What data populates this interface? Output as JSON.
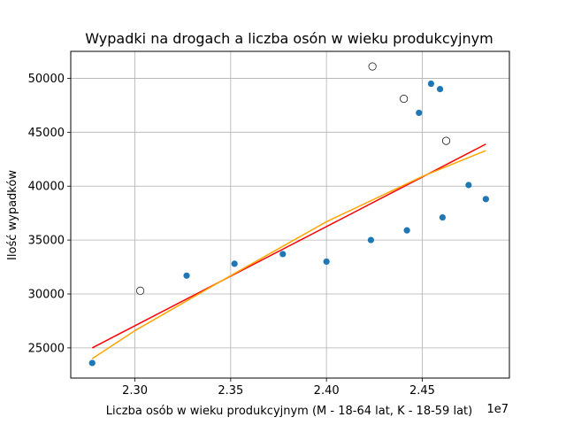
{
  "chart_data": {
    "type": "scatter",
    "title": "Wypadki na drogach a liczba osón w wieku produkcyjnym",
    "xlabel": "Liczba osób w wieku produkcyjnym (M - 18-64 lat, K - 18-59 lat)",
    "ylabel": "Ilość wypadków",
    "x_offset_label": "1e7",
    "xlim": [
      2.2665,
      2.4955
    ],
    "ylim": [
      22200,
      52500
    ],
    "grid": true,
    "x_ticks": [
      2.3,
      2.35,
      2.4,
      2.45
    ],
    "x_tick_labels": [
      "2.30",
      "2.35",
      "2.40",
      "2.45"
    ],
    "y_ticks": [
      25000,
      30000,
      35000,
      40000,
      45000,
      50000
    ],
    "y_tick_labels": [
      "25000",
      "30000",
      "35000",
      "40000",
      "45000",
      "50000"
    ],
    "series": [
      {
        "marker": "filled",
        "color": "#1f77b4",
        "points": [
          [
            2.2777,
            23600
          ],
          [
            2.327,
            31700
          ],
          [
            2.352,
            32800
          ],
          [
            2.3772,
            33700
          ],
          [
            2.4,
            33000
          ],
          [
            2.4232,
            35000
          ],
          [
            2.442,
            35900
          ],
          [
            2.4483,
            46800
          ],
          [
            2.4546,
            49500
          ],
          [
            2.4593,
            49000
          ],
          [
            2.4606,
            37100
          ],
          [
            2.4742,
            40100
          ],
          [
            2.4832,
            38800
          ]
        ]
      },
      {
        "marker": "hollow",
        "color": "#000000",
        "points": [
          [
            2.3028,
            30300
          ],
          [
            2.424,
            51100
          ],
          [
            2.4404,
            48100
          ],
          [
            2.4625,
            44200
          ]
        ]
      },
      {
        "type": "line",
        "color": "#ff0000",
        "points": [
          [
            2.2777,
            25000
          ],
          [
            2.4832,
            43900
          ]
        ]
      },
      {
        "type": "line",
        "color": "#ffa500",
        "points": [
          [
            2.2777,
            24000
          ],
          [
            2.3,
            26600
          ],
          [
            2.35,
            31700
          ],
          [
            2.4,
            36700
          ],
          [
            2.45,
            40900
          ],
          [
            2.4832,
            43300
          ]
        ]
      }
    ]
  }
}
